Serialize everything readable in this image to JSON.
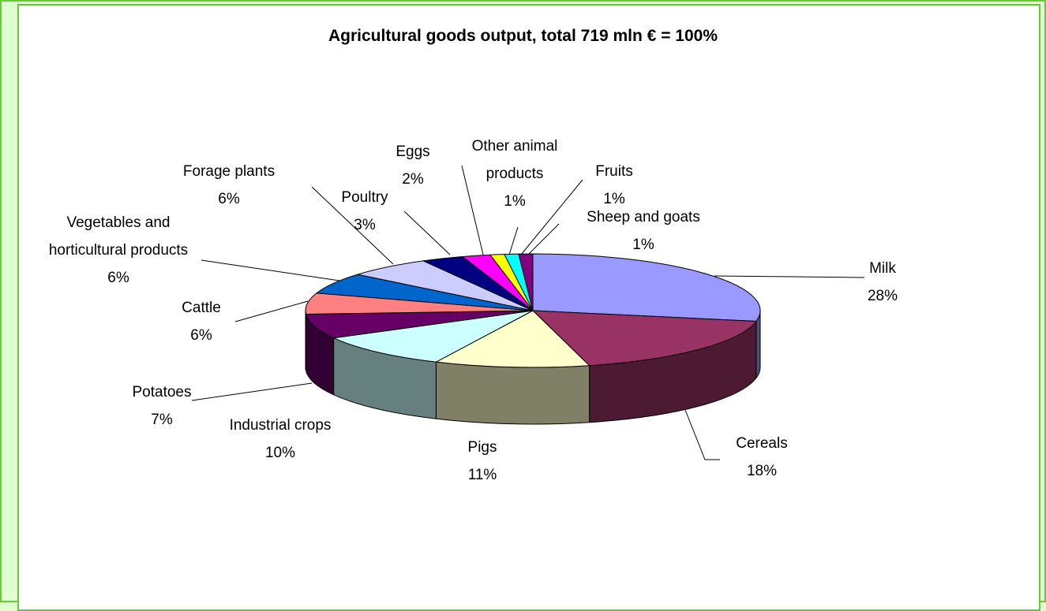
{
  "chart_data": {
    "type": "pie3d",
    "title": "Agricultural goods output, total 719 mln € = 100%",
    "categories": [
      "Milk",
      "Cereals",
      "Pigs",
      "Industrial crops",
      "Potatoes",
      "Cattle",
      "Vegetables and horticultural products",
      "Forage plants",
      "Poultry",
      "Eggs",
      "Other animal products",
      "Fruits",
      "Sheep and goats"
    ],
    "values": [
      28,
      18,
      11,
      10,
      7,
      6,
      6,
      6,
      3,
      2,
      1,
      1,
      1
    ],
    "value_labels": [
      "28%",
      "18%",
      "11%",
      "10%",
      "7%",
      "6%",
      "6%",
      "6%",
      "3%",
      "2%",
      "1%",
      "1%",
      "1%"
    ],
    "colors": [
      "#9999ff",
      "#993366",
      "#ffffcc",
      "#ccffff",
      "#660066",
      "#ff8080",
      "#0066cc",
      "#ccccff",
      "#000080",
      "#ff00ff",
      "#ffff00",
      "#00ffff",
      "#800080"
    ]
  }
}
